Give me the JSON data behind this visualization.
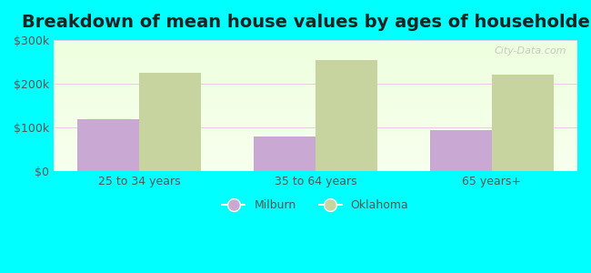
{
  "title": "Breakdown of mean house values by ages of householders",
  "categories": [
    "25 to 34 years",
    "35 to 64 years",
    "65 years+"
  ],
  "milburn_values": [
    120000,
    80000,
    95000
  ],
  "oklahoma_values": [
    225000,
    255000,
    220000
  ],
  "milburn_color": "#c9a8d4",
  "oklahoma_color": "#c8d4a0",
  "ylim": [
    0,
    300000
  ],
  "yticks": [
    0,
    100000,
    200000,
    300000
  ],
  "ytick_labels": [
    "$0",
    "$100k",
    "$200k",
    "$300k"
  ],
  "background_color": "#00ffff",
  "bar_width": 0.35,
  "title_fontsize": 14,
  "legend_milburn": "Milburn",
  "legend_oklahoma": "Oklahoma",
  "watermark": "City-Data.com"
}
